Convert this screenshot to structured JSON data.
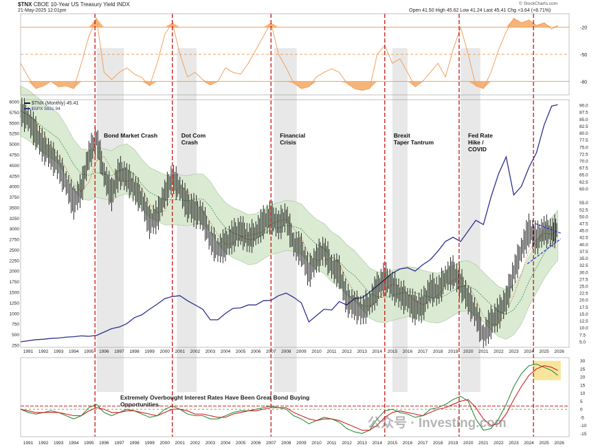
{
  "header": {
    "symbol": "$TNX",
    "description": "CBOE 10-Year US Treasury Yield INDX",
    "date": "21-May-2025 12:01pm",
    "ohlc": "Open 41.50  High 45.62  Low 41.24  Last 45.41  Chg +3.64 (+8.71%)",
    "ohlc_change_color": "#2ca02c",
    "source": "© StockCharts.com"
  },
  "legend": {
    "tnx": "$TNX (Monthly) 45.41",
    "spx": "$SPX 5931.94"
  },
  "colors": {
    "price": "#111111",
    "spx": "#2b2f8f",
    "band_fill": "#d8e8cf",
    "band_line": "#9cbf8e",
    "ma_short": "#c87a3a",
    "ma_long": "#3c8c3c",
    "rsi": "#f0a060",
    "rsi_fill": "#f5a860",
    "event_line": "#c00000",
    "shade": "#e6e6e6",
    "macd_green": "#2e8b3a",
    "macd_red": "#cc2222",
    "highlight": "#f7e08a"
  },
  "annotations": {
    "events": [
      {
        "label": "Bond Market Crash",
        "date": 1994.9
      },
      {
        "label": "Dot Com\nCrash",
        "date": 2000.0
      },
      {
        "label": "Financial\nCrisis",
        "date": 2006.5
      },
      {
        "label": "Brexit\nTaper Tantrum",
        "date": 2014.0
      },
      {
        "label": "Fed Rate\nHike /\nCOVID",
        "date": 2018.9
      },
      {
        "label": "",
        "date": 2023.8
      }
    ],
    "shaded_periods": [
      [
        1995.0,
        1996.8
      ],
      [
        2000.3,
        2001.6
      ],
      [
        2006.7,
        2008.2
      ],
      [
        2014.5,
        2015.5
      ],
      [
        2019.0,
        2020.3
      ]
    ],
    "overbought_note": "Extremely Overbought Interest Rates Have Been Great Bond Buying Opportunities.",
    "watermark": "公众号 · Investing.com"
  },
  "chart_data": [
    {
      "type": "line",
      "panel": "rsi-top",
      "yticks": [
        -20,
        -50,
        -80
      ],
      "reference_lines": [
        -20,
        -50,
        -80
      ],
      "x": [
        1990.0,
        1990.5,
        1991.0,
        1991.5,
        1992.0,
        1992.5,
        1993.0,
        1993.5,
        1994.0,
        1994.5,
        1995.0,
        1995.5,
        1996.0,
        1996.5,
        1997.0,
        1997.5,
        1998.0,
        1998.5,
        1999.0,
        1999.5,
        2000.0,
        2000.5,
        2001.0,
        2001.5,
        2002.0,
        2002.5,
        2003.0,
        2003.5,
        2004.0,
        2004.5,
        2005.0,
        2005.5,
        2006.0,
        2006.5,
        2007.0,
        2007.5,
        2008.0,
        2008.5,
        2009.0,
        2009.5,
        2010.0,
        2010.5,
        2011.0,
        2011.5,
        2012.0,
        2012.5,
        2013.0,
        2013.5,
        2014.0,
        2014.5,
        2015.0,
        2015.5,
        2016.0,
        2016.5,
        2017.0,
        2017.5,
        2018.0,
        2018.5,
        2019.0,
        2019.5,
        2020.0,
        2020.5,
        2021.0,
        2021.5,
        2022.0,
        2022.5,
        2023.0,
        2023.5,
        2024.0,
        2024.5,
        2025.0,
        2025.4
      ],
      "values": [
        -60,
        -75,
        -88,
        -85,
        -80,
        -86,
        -85,
        -88,
        -60,
        -30,
        -10,
        -70,
        -78,
        -70,
        -65,
        -72,
        -76,
        -85,
        -60,
        -28,
        -15,
        -50,
        -75,
        -70,
        -78,
        -84,
        -80,
        -65,
        -70,
        -72,
        -60,
        -45,
        -30,
        -15,
        -50,
        -65,
        -82,
        -88,
        -86,
        -75,
        -70,
        -66,
        -70,
        -82,
        -88,
        -90,
        -88,
        -50,
        -40,
        -60,
        -55,
        -70,
        -86,
        -80,
        -70,
        -60,
        -75,
        -45,
        -20,
        -50,
        -85,
        -88,
        -70,
        -45,
        -25,
        -10,
        -15,
        -12,
        -18,
        -15,
        -22,
        -18
      ]
    },
    {
      "type": "line",
      "panel": "main",
      "series": [
        {
          "name": "$TNX (Monthly)",
          "axis": "right",
          "x": [
            1990.0,
            1990.5,
            1991.0,
            1991.5,
            1992.0,
            1992.5,
            1993.0,
            1993.5,
            1994.0,
            1994.5,
            1995.0,
            1995.5,
            1996.0,
            1996.5,
            1997.0,
            1997.5,
            1998.0,
            1998.5,
            1999.0,
            1999.5,
            2000.0,
            2000.5,
            2001.0,
            2001.5,
            2002.0,
            2002.5,
            2003.0,
            2003.5,
            2004.0,
            2004.5,
            2005.0,
            2005.5,
            2006.0,
            2006.5,
            2007.0,
            2007.5,
            2008.0,
            2008.5,
            2009.0,
            2009.5,
            2010.0,
            2010.5,
            2011.0,
            2011.5,
            2012.0,
            2012.5,
            2013.0,
            2013.5,
            2014.0,
            2014.5,
            2015.0,
            2015.5,
            2016.0,
            2016.5,
            2017.0,
            2017.5,
            2018.0,
            2018.5,
            2019.0,
            2019.5,
            2020.0,
            2020.5,
            2021.0,
            2021.5,
            2022.0,
            2022.5,
            2023.0,
            2023.5,
            2024.0,
            2024.5,
            2025.0,
            2025.4
          ],
          "values": [
            88,
            85,
            80,
            75,
            72,
            68,
            62,
            55,
            60,
            72,
            78,
            65,
            58,
            66,
            64,
            60,
            56,
            48,
            50,
            58,
            64,
            60,
            54,
            52,
            50,
            42,
            38,
            40,
            43,
            45,
            42,
            44,
            48,
            50,
            47,
            50,
            40,
            38,
            30,
            35,
            38,
            32,
            30,
            20,
            18,
            16,
            19,
            24,
            28,
            25,
            22,
            20,
            17,
            18,
            24,
            23,
            28,
            30,
            26,
            20,
            15,
            7,
            12,
            15,
            20,
            30,
            38,
            45,
            42,
            45,
            44,
            45.4
          ]
        },
        {
          "name": "$SPX",
          "axis": "left",
          "x": [
            1990.0,
            1990.5,
            1991.0,
            1991.5,
            1992.0,
            1992.5,
            1993.0,
            1993.5,
            1994.0,
            1994.5,
            1995.0,
            1995.5,
            1996.0,
            1996.5,
            1997.0,
            1997.5,
            1998.0,
            1998.5,
            1999.0,
            1999.5,
            2000.0,
            2000.5,
            2001.0,
            2001.5,
            2002.0,
            2002.5,
            2003.0,
            2003.5,
            2004.0,
            2004.5,
            2005.0,
            2005.5,
            2006.0,
            2006.5,
            2007.0,
            2007.5,
            2008.0,
            2008.5,
            2009.0,
            2009.5,
            2010.0,
            2010.5,
            2011.0,
            2011.5,
            2012.0,
            2012.5,
            2013.0,
            2013.5,
            2014.0,
            2014.5,
            2015.0,
            2015.5,
            2016.0,
            2016.5,
            2017.0,
            2017.5,
            2018.0,
            2018.5,
            2019.0,
            2019.5,
            2020.0,
            2020.5,
            2021.0,
            2021.5,
            2022.0,
            2022.5,
            2023.0,
            2023.5,
            2024.0,
            2024.5,
            2025.0,
            2025.4
          ],
          "values": [
            330,
            355,
            380,
            390,
            410,
            420,
            440,
            450,
            470,
            460,
            480,
            560,
            640,
            680,
            760,
            900,
            970,
            1100,
            1220,
            1350,
            1400,
            1420,
            1300,
            1200,
            1100,
            850,
            850,
            1000,
            1120,
            1130,
            1200,
            1200,
            1300,
            1310,
            1420,
            1480,
            1380,
            1250,
            800,
            950,
            1100,
            1080,
            1280,
            1200,
            1350,
            1370,
            1500,
            1650,
            1800,
            1950,
            2050,
            2080,
            2000,
            2150,
            2270,
            2470,
            2700,
            2800,
            2700,
            2950,
            3200,
            3100,
            3750,
            4300,
            4700,
            3800,
            4000,
            4450,
            4800,
            5450,
            5900,
            5931.94
          ]
        }
      ],
      "right_yticks": [
        5.0,
        7.5,
        10.0,
        12.5,
        15.0,
        17.5,
        20.0,
        22.5,
        25.0,
        27.5,
        30.0,
        32.5,
        35.0,
        37.5,
        40.0,
        42.5,
        45.0,
        47.5,
        50.0,
        52.5,
        55.0,
        60.0,
        62.5,
        65.0,
        67.5,
        70.0,
        72.5,
        75.0,
        77.5,
        80.0,
        82.5,
        85.0,
        87.5,
        90.0
      ],
      "left_yticks": [
        250,
        500,
        750,
        1000,
        1250,
        1500,
        1750,
        2000,
        2250,
        2500,
        2750,
        3000,
        3250,
        3500,
        3750,
        4000,
        4250,
        4500,
        4750,
        5000,
        5250,
        5500,
        5750,
        6000
      ],
      "ylim_right": [
        3.0,
        92.0
      ],
      "ylim_left": [
        200,
        6050
      ]
    },
    {
      "type": "line",
      "panel": "macd",
      "yticks": [
        -15,
        -10,
        -5,
        0,
        5,
        10,
        15,
        20,
        25,
        30
      ],
      "ylim": [
        -17,
        32
      ],
      "series": [
        {
          "name": "",
          "color_key": "macd_green",
          "x": [
            1990.0,
            1990.5,
            1991.0,
            1991.5,
            1992.0,
            1992.5,
            1993.0,
            1993.5,
            1994.0,
            1994.5,
            1995.0,
            1995.5,
            1996.0,
            1996.5,
            1997.0,
            1997.5,
            1998.0,
            1998.5,
            1999.0,
            1999.5,
            2000.0,
            2000.5,
            2001.0,
            2001.5,
            2002.0,
            2002.5,
            2003.0,
            2003.5,
            2004.0,
            2004.5,
            2005.0,
            2005.5,
            2006.0,
            2006.5,
            2007.0,
            2007.5,
            2008.0,
            2008.5,
            2009.0,
            2009.5,
            2010.0,
            2010.5,
            2011.0,
            2011.5,
            2012.0,
            2012.5,
            2013.0,
            2013.5,
            2014.0,
            2014.5,
            2015.0,
            2015.5,
            2016.0,
            2016.5,
            2017.0,
            2017.5,
            2018.0,
            2018.5,
            2019.0,
            2019.5,
            2020.0,
            2020.5,
            2021.0,
            2021.5,
            2022.0,
            2022.5,
            2023.0,
            2023.5,
            2024.0,
            2024.5,
            2025.0,
            2025.4
          ],
          "values": [
            0,
            -2,
            -3,
            -2,
            -1,
            -2,
            -4,
            -6,
            -4,
            1,
            3,
            -2,
            -4,
            -2,
            0,
            -1,
            -3,
            -5,
            -4,
            0,
            2,
            0,
            -3,
            -4,
            -4,
            -6,
            -6,
            -4,
            -2,
            -1,
            -1,
            0,
            1,
            2,
            1,
            0,
            -4,
            -6,
            -9,
            -7,
            -5,
            -6,
            -8,
            -12,
            -14,
            -15,
            -13,
            -6,
            -1,
            0,
            -2,
            -3,
            -5,
            -4,
            0,
            1,
            3,
            6,
            8,
            5,
            -6,
            -13,
            -12,
            -6,
            3,
            14,
            22,
            27,
            28,
            26,
            24,
            21
          ]
        },
        {
          "name": "",
          "color_key": "macd_red",
          "x": [
            1990.0,
            1990.5,
            1991.0,
            1991.5,
            1992.0,
            1992.5,
            1993.0,
            1993.5,
            1994.0,
            1994.5,
            1995.0,
            1995.5,
            1996.0,
            1996.5,
            1997.0,
            1997.5,
            1998.0,
            1998.5,
            1999.0,
            1999.5,
            2000.0,
            2000.5,
            2001.0,
            2001.5,
            2002.0,
            2002.5,
            2003.0,
            2003.5,
            2004.0,
            2004.5,
            2005.0,
            2005.5,
            2006.0,
            2006.5,
            2007.0,
            2007.5,
            2008.0,
            2008.5,
            2009.0,
            2009.5,
            2010.0,
            2010.5,
            2011.0,
            2011.5,
            2012.0,
            2012.5,
            2013.0,
            2013.5,
            2014.0,
            2014.5,
            2015.0,
            2015.5,
            2016.0,
            2016.5,
            2017.0,
            2017.5,
            2018.0,
            2018.5,
            2019.0,
            2019.5,
            2020.0,
            2020.5,
            2021.0,
            2021.5,
            2022.0,
            2022.5,
            2023.0,
            2023.5,
            2024.0,
            2024.5,
            2025.0,
            2025.4
          ],
          "values": [
            0,
            -1,
            -2,
            -2,
            -2,
            -2,
            -3,
            -4,
            -4,
            -1,
            1,
            0,
            -2,
            -2,
            -1,
            -1,
            -2,
            -3,
            -4,
            -2,
            0,
            0,
            -1,
            -3,
            -3,
            -4,
            -5,
            -5,
            -3,
            -2,
            -1,
            -1,
            0,
            1,
            1,
            1,
            -2,
            -4,
            -6,
            -7,
            -6,
            -6,
            -7,
            -9,
            -11,
            -13,
            -13,
            -10,
            -5,
            -2,
            -1,
            -2,
            -3,
            -4,
            -2,
            0,
            1,
            3,
            5,
            6,
            1,
            -6,
            -10,
            -9,
            -3,
            6,
            14,
            21,
            25,
            27,
            26,
            24
          ]
        }
      ],
      "reference_lines": [
        {
          "value": 2.0,
          "style": "dashed-red"
        },
        {
          "value": 0,
          "style": "dashed-green"
        }
      ]
    }
  ],
  "x_axis": {
    "year_labels": [
      "1991",
      "1992",
      "1993",
      "1994",
      "1995",
      "1996",
      "1997",
      "1998",
      "1999",
      "2000",
      "2001",
      "2002",
      "2003",
      "2004",
      "2005",
      "2006",
      "2007",
      "2008",
      "2009",
      "2010",
      "2011",
      "2012",
      "2013",
      "2014",
      "2015",
      "2016",
      "2017",
      "2018",
      "2019",
      "2020",
      "2021",
      "2022",
      "2023",
      "2024",
      "2025",
      "2026"
    ],
    "year_values": [
      1991,
      1992,
      1993,
      1994,
      1995,
      1996,
      1997,
      1998,
      1999,
      2000,
      2001,
      2002,
      2003,
      2004,
      2005,
      2006,
      2007,
      2008,
      2009,
      2010,
      2011,
      2012,
      2013,
      2014,
      2015,
      2016,
      2017,
      2018,
      2019,
      2020,
      2021,
      2022,
      2023,
      2024,
      2025,
      2026
    ]
  }
}
